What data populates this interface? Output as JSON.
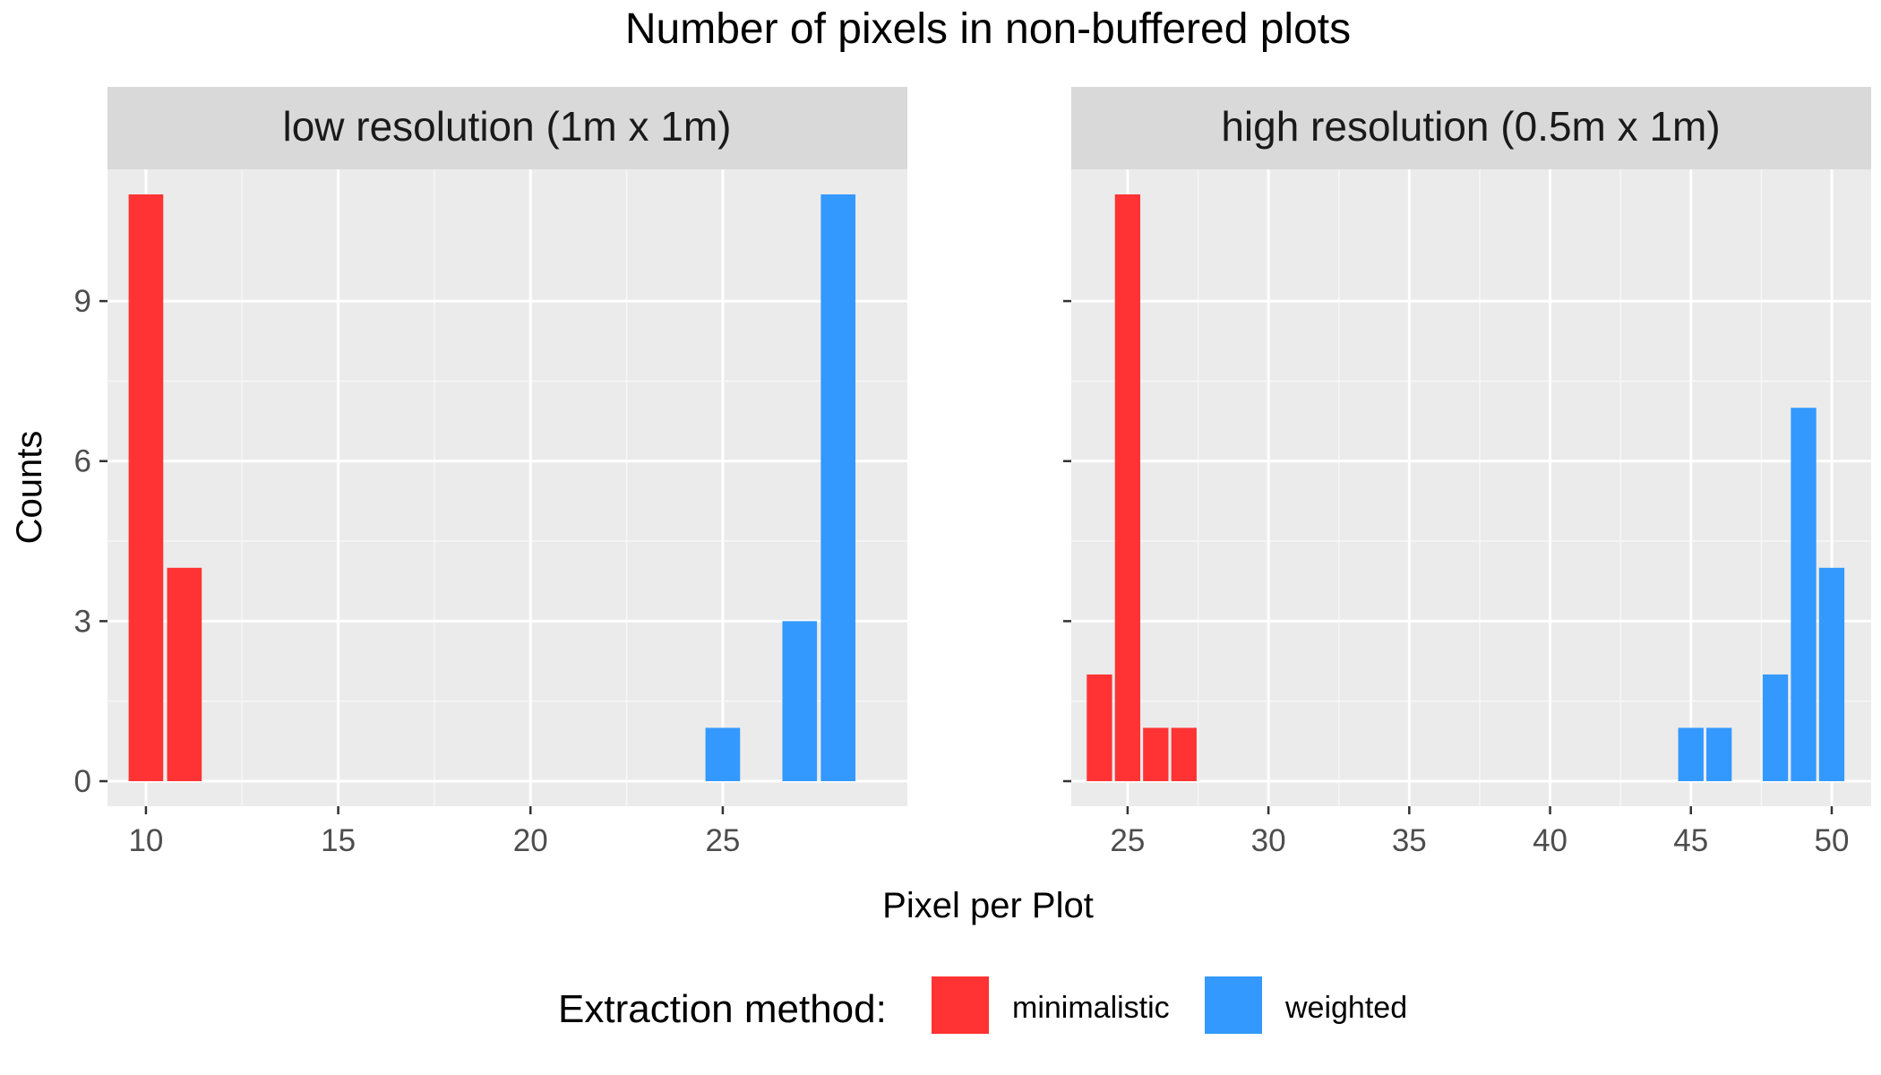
{
  "chart_data": {
    "type": "bar",
    "title": "Number of pixels in non-buffered plots",
    "xlabel": "Pixel per Plot",
    "ylabel": "Counts",
    "ylim": [
      0,
      11
    ],
    "y_ticks": [
      0,
      3,
      6,
      9
    ],
    "grid": true,
    "legend": {
      "title": "Extraction method:",
      "position": "bottom",
      "entries": [
        {
          "name": "minimalistic",
          "color": "#FF3333"
        },
        {
          "name": "weighted",
          "color": "#3399FF"
        }
      ]
    },
    "panels": [
      {
        "strip": "low resolution (1m x 1m)",
        "xlim": [
          9,
          29.8
        ],
        "x_ticks": [
          10,
          15,
          20,
          25
        ],
        "series": [
          {
            "name": "minimalistic",
            "color": "#FF3333",
            "x": [
              10,
              11
            ],
            "values": [
              11,
              4
            ]
          },
          {
            "name": "weighted",
            "color": "#3399FF",
            "x": [
              25,
              27,
              28
            ],
            "values": [
              1,
              3,
              11
            ]
          }
        ]
      },
      {
        "strip": "high resolution (0.5m x 1m)",
        "xlim": [
          23,
          51.4
        ],
        "x_ticks": [
          25,
          30,
          35,
          40,
          45,
          50
        ],
        "series": [
          {
            "name": "minimalistic",
            "color": "#FF3333",
            "x": [
              24,
              25,
              26,
              27
            ],
            "values": [
              2,
              11,
              1,
              1
            ]
          },
          {
            "name": "weighted",
            "color": "#3399FF",
            "x": [
              45,
              46,
              48,
              49,
              50
            ],
            "values": [
              1,
              1,
              2,
              7,
              4
            ]
          }
        ]
      }
    ]
  }
}
